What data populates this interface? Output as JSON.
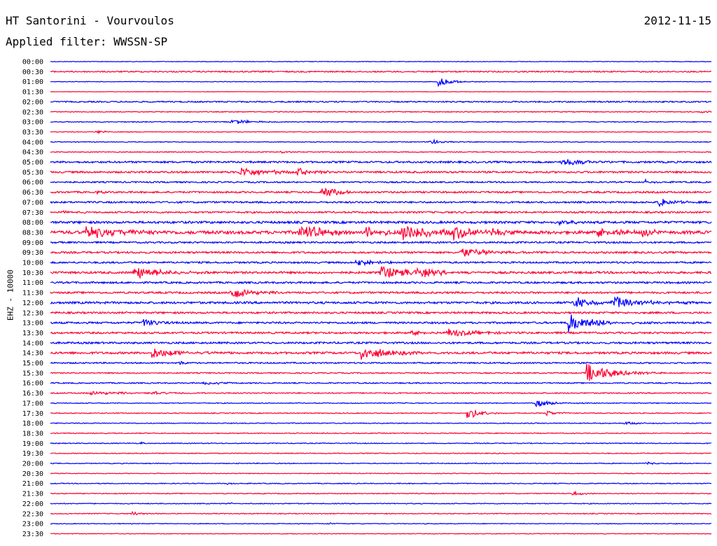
{
  "header": {
    "station": "HT Santorini - Vourvoulos",
    "date": "2012-11-15",
    "filter": "Applied filter: WWSSN-SP"
  },
  "chart_data": {
    "type": "line",
    "ylabel": "EHZ - 10000",
    "colors": [
      "#0000ff",
      "#ff0033"
    ],
    "grid": false,
    "x_range_minutes": [
      0,
      30
    ],
    "rows": [
      {
        "label": "00:00",
        "color": "#0000ff",
        "noise": 0.4,
        "events": []
      },
      {
        "label": "00:30",
        "color": "#ff0033",
        "noise": 0.9,
        "events": []
      },
      {
        "label": "01:00",
        "color": "#0000ff",
        "noise": 0.4,
        "events": [
          {
            "t": 17.6,
            "amp": 6,
            "dur": 0.8
          }
        ]
      },
      {
        "label": "01:30",
        "color": "#ff0033",
        "noise": 0.3,
        "events": []
      },
      {
        "label": "02:00",
        "color": "#0000ff",
        "noise": 0.9,
        "events": []
      },
      {
        "label": "02:30",
        "color": "#ff0033",
        "noise": 0.6,
        "events": [
          {
            "t": 29.5,
            "amp": 2,
            "dur": 0.5
          }
        ]
      },
      {
        "label": "03:00",
        "color": "#0000ff",
        "noise": 0.6,
        "events": [
          {
            "t": 8.2,
            "amp": 4,
            "dur": 1.0
          }
        ]
      },
      {
        "label": "03:30",
        "color": "#ff0033",
        "noise": 0.5,
        "events": [
          {
            "t": 2.1,
            "amp": 3,
            "dur": 0.4
          }
        ]
      },
      {
        "label": "04:00",
        "color": "#0000ff",
        "noise": 0.5,
        "events": [
          {
            "t": 17.2,
            "amp": 4,
            "dur": 0.6
          }
        ]
      },
      {
        "label": "04:30",
        "color": "#ff0033",
        "noise": 0.6,
        "events": [
          {
            "t": 10.5,
            "amp": 2,
            "dur": 0.3
          }
        ]
      },
      {
        "label": "05:00",
        "color": "#0000ff",
        "noise": 1.3,
        "events": [
          {
            "t": 23.2,
            "amp": 6,
            "dur": 1.2
          }
        ]
      },
      {
        "label": "05:30",
        "color": "#ff0033",
        "noise": 1.3,
        "events": [
          {
            "t": 8.6,
            "amp": 7,
            "dur": 1.5
          },
          {
            "t": 11.2,
            "amp": 5,
            "dur": 1.0
          }
        ]
      },
      {
        "label": "06:00",
        "color": "#0000ff",
        "noise": 1.0,
        "events": [
          {
            "t": 27.0,
            "amp": 3,
            "dur": 0.5
          }
        ]
      },
      {
        "label": "06:30",
        "color": "#ff0033",
        "noise": 1.2,
        "events": [
          {
            "t": 12.3,
            "amp": 10,
            "dur": 0.8
          },
          {
            "t": 2.0,
            "amp": 3,
            "dur": 0.4
          }
        ]
      },
      {
        "label": "07:00",
        "color": "#0000ff",
        "noise": 1.2,
        "events": [
          {
            "t": 27.6,
            "amp": 7,
            "dur": 0.8
          }
        ]
      },
      {
        "label": "07:30",
        "color": "#ff0033",
        "noise": 1.2,
        "events": [
          {
            "t": 0.3,
            "amp": 3,
            "dur": 0.4
          }
        ]
      },
      {
        "label": "08:00",
        "color": "#0000ff",
        "noise": 1.6,
        "events": [
          {
            "t": 23.1,
            "amp": 5,
            "dur": 0.6
          }
        ]
      },
      {
        "label": "08:30",
        "color": "#ff0033",
        "noise": 2.2,
        "events": [
          {
            "t": 1.6,
            "amp": 9,
            "dur": 2.0
          },
          {
            "t": 11.3,
            "amp": 12,
            "dur": 1.4
          },
          {
            "t": 14.3,
            "amp": 10,
            "dur": 0.8
          },
          {
            "t": 16.0,
            "amp": 12,
            "dur": 1.5
          },
          {
            "t": 18.3,
            "amp": 11,
            "dur": 1.0
          },
          {
            "t": 20.0,
            "amp": 6,
            "dur": 0.7
          },
          {
            "t": 24.8,
            "amp": 9,
            "dur": 1.0
          },
          {
            "t": 26.8,
            "amp": 6,
            "dur": 0.7
          }
        ]
      },
      {
        "label": "09:00",
        "color": "#0000ff",
        "noise": 1.2,
        "events": []
      },
      {
        "label": "09:30",
        "color": "#ff0033",
        "noise": 1.3,
        "events": [
          {
            "t": 18.6,
            "amp": 7,
            "dur": 1.5
          }
        ]
      },
      {
        "label": "10:00",
        "color": "#0000ff",
        "noise": 1.2,
        "events": [
          {
            "t": 13.8,
            "amp": 5,
            "dur": 1.0
          }
        ]
      },
      {
        "label": "10:30",
        "color": "#ff0033",
        "noise": 1.5,
        "events": [
          {
            "t": 3.8,
            "amp": 10,
            "dur": 1.2
          },
          {
            "t": 15.0,
            "amp": 10,
            "dur": 1.3
          },
          {
            "t": 16.5,
            "amp": 7,
            "dur": 1.2
          }
        ]
      },
      {
        "label": "11:00",
        "color": "#0000ff",
        "noise": 1.3,
        "events": []
      },
      {
        "label": "11:30",
        "color": "#ff0033",
        "noise": 1.3,
        "events": [
          {
            "t": 8.2,
            "amp": 10,
            "dur": 1.0
          }
        ]
      },
      {
        "label": "12:00",
        "color": "#0000ff",
        "noise": 1.5,
        "events": [
          {
            "t": 23.8,
            "amp": 9,
            "dur": 0.8
          },
          {
            "t": 25.5,
            "amp": 8,
            "dur": 1.6
          }
        ]
      },
      {
        "label": "12:30",
        "color": "#ff0033",
        "noise": 1.3,
        "events": []
      },
      {
        "label": "13:00",
        "color": "#0000ff",
        "noise": 1.3,
        "events": [
          {
            "t": 4.2,
            "amp": 6,
            "dur": 0.8
          },
          {
            "t": 23.5,
            "amp": 14,
            "dur": 1.3
          }
        ]
      },
      {
        "label": "13:30",
        "color": "#ff0033",
        "noise": 1.3,
        "events": [
          {
            "t": 16.4,
            "amp": 5,
            "dur": 0.6
          },
          {
            "t": 18.0,
            "amp": 6,
            "dur": 1.4
          }
        ]
      },
      {
        "label": "14:00",
        "color": "#0000ff",
        "noise": 1.3,
        "events": []
      },
      {
        "label": "14:30",
        "color": "#ff0033",
        "noise": 1.5,
        "events": [
          {
            "t": 4.6,
            "amp": 8,
            "dur": 1.5
          },
          {
            "t": 14.1,
            "amp": 10,
            "dur": 1.5
          }
        ]
      },
      {
        "label": "15:00",
        "color": "#0000ff",
        "noise": 1.0,
        "events": [
          {
            "t": 5.8,
            "amp": 3,
            "dur": 0.4
          }
        ]
      },
      {
        "label": "15:30",
        "color": "#ff0033",
        "noise": 0.8,
        "events": [
          {
            "t": 24.3,
            "amp": 14,
            "dur": 1.4
          }
        ]
      },
      {
        "label": "16:00",
        "color": "#0000ff",
        "noise": 0.8,
        "events": [
          {
            "t": 7.0,
            "amp": 3,
            "dur": 0.8
          }
        ]
      },
      {
        "label": "16:30",
        "color": "#ff0033",
        "noise": 0.8,
        "events": [
          {
            "t": 1.8,
            "amp": 3,
            "dur": 1.6
          },
          {
            "t": 4.6,
            "amp": 2,
            "dur": 1.0
          }
        ]
      },
      {
        "label": "17:00",
        "color": "#0000ff",
        "noise": 0.6,
        "events": [
          {
            "t": 22.0,
            "amp": 6,
            "dur": 0.8
          }
        ]
      },
      {
        "label": "17:30",
        "color": "#ff0033",
        "noise": 0.6,
        "events": [
          {
            "t": 18.9,
            "amp": 9,
            "dur": 0.7
          },
          {
            "t": 22.5,
            "amp": 4,
            "dur": 0.6
          }
        ]
      },
      {
        "label": "18:00",
        "color": "#0000ff",
        "noise": 0.6,
        "events": [
          {
            "t": 26.0,
            "amp": 2,
            "dur": 0.8
          }
        ]
      },
      {
        "label": "18:30",
        "color": "#ff0033",
        "noise": 0.6,
        "events": []
      },
      {
        "label": "19:00",
        "color": "#0000ff",
        "noise": 0.6,
        "events": [
          {
            "t": 4.1,
            "amp": 3,
            "dur": 0.2
          }
        ]
      },
      {
        "label": "19:30",
        "color": "#ff0033",
        "noise": 0.6,
        "events": []
      },
      {
        "label": "20:00",
        "color": "#0000ff",
        "noise": 0.6,
        "events": [
          {
            "t": 27.0,
            "amp": 2,
            "dur": 0.6
          }
        ]
      },
      {
        "label": "20:30",
        "color": "#ff0033",
        "noise": 0.5,
        "events": []
      },
      {
        "label": "21:00",
        "color": "#0000ff",
        "noise": 0.6,
        "events": [
          {
            "t": 8.0,
            "amp": 2,
            "dur": 0.4
          }
        ]
      },
      {
        "label": "21:30",
        "color": "#ff0033",
        "noise": 0.6,
        "events": [
          {
            "t": 23.7,
            "amp": 3,
            "dur": 0.6
          }
        ]
      },
      {
        "label": "22:00",
        "color": "#0000ff",
        "noise": 0.6,
        "events": [
          {
            "t": 8.0,
            "amp": 2,
            "dur": 0.4
          }
        ]
      },
      {
        "label": "22:30",
        "color": "#ff0033",
        "noise": 0.6,
        "events": [
          {
            "t": 3.7,
            "amp": 3,
            "dur": 0.6
          }
        ]
      },
      {
        "label": "23:00",
        "color": "#0000ff",
        "noise": 0.5,
        "events": [
          {
            "t": 12.6,
            "amp": 2,
            "dur": 0.3
          }
        ]
      },
      {
        "label": "23:30",
        "color": "#ff0033",
        "noise": 0.5,
        "events": []
      }
    ]
  }
}
